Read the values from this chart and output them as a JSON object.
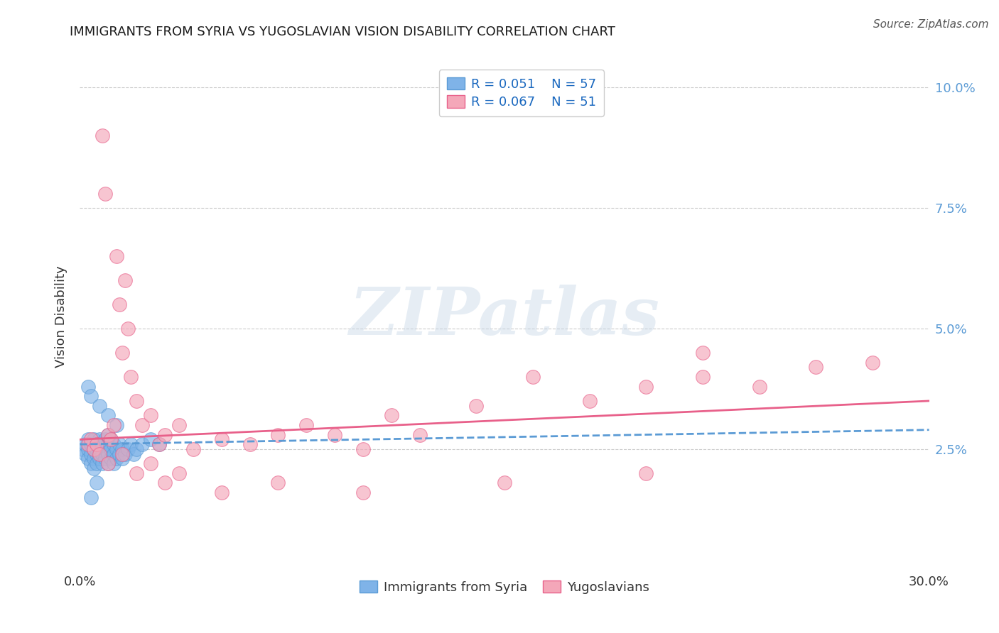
{
  "title": "IMMIGRANTS FROM SYRIA VS YUGOSLAVIAN VISION DISABILITY CORRELATION CHART",
  "source": "Source: ZipAtlas.com",
  "ylabel": "Vision Disability",
  "xlim": [
    0.0,
    0.3
  ],
  "ylim": [
    0.0,
    0.105
  ],
  "ytick_vals": [
    0.025,
    0.05,
    0.075,
    0.1
  ],
  "ytick_labels": [
    "2.5%",
    "5.0%",
    "7.5%",
    "10.0%"
  ],
  "xtick_vals": [
    0.0,
    0.3
  ],
  "xtick_labels": [
    "0.0%",
    "30.0%"
  ],
  "color_syria": "#7FB3E8",
  "color_yugoslav": "#F4A7B9",
  "trendline_syria_color": "#5B9BD5",
  "trendline_yugoslav_color": "#E8608A",
  "background_color": "#ffffff",
  "watermark_text": "ZIPatlas",
  "syria_x": [
    0.001,
    0.002,
    0.002,
    0.003,
    0.003,
    0.003,
    0.004,
    0.004,
    0.004,
    0.005,
    0.005,
    0.005,
    0.005,
    0.006,
    0.006,
    0.006,
    0.006,
    0.007,
    0.007,
    0.007,
    0.008,
    0.008,
    0.008,
    0.009,
    0.009,
    0.009,
    0.01,
    0.01,
    0.01,
    0.01,
    0.011,
    0.011,
    0.011,
    0.012,
    0.012,
    0.012,
    0.013,
    0.013,
    0.014,
    0.014,
    0.015,
    0.015,
    0.016,
    0.017,
    0.018,
    0.019,
    0.02,
    0.022,
    0.025,
    0.028,
    0.003,
    0.004,
    0.007,
    0.01,
    0.013,
    0.006,
    0.004
  ],
  "syria_y": [
    0.025,
    0.024,
    0.026,
    0.023,
    0.025,
    0.027,
    0.022,
    0.026,
    0.024,
    0.023,
    0.025,
    0.021,
    0.027,
    0.024,
    0.026,
    0.022,
    0.025,
    0.025,
    0.023,
    0.027,
    0.024,
    0.022,
    0.026,
    0.025,
    0.023,
    0.027,
    0.024,
    0.022,
    0.026,
    0.028,
    0.023,
    0.025,
    0.027,
    0.024,
    0.022,
    0.026,
    0.025,
    0.023,
    0.024,
    0.026,
    0.025,
    0.023,
    0.024,
    0.025,
    0.026,
    0.024,
    0.025,
    0.026,
    0.027,
    0.026,
    0.038,
    0.036,
    0.034,
    0.032,
    0.03,
    0.018,
    0.015
  ],
  "yugoslav_x": [
    0.003,
    0.004,
    0.005,
    0.006,
    0.007,
    0.008,
    0.009,
    0.01,
    0.011,
    0.012,
    0.013,
    0.014,
    0.015,
    0.016,
    0.017,
    0.018,
    0.02,
    0.022,
    0.025,
    0.028,
    0.03,
    0.035,
    0.04,
    0.05,
    0.06,
    0.07,
    0.08,
    0.09,
    0.1,
    0.11,
    0.12,
    0.14,
    0.16,
    0.18,
    0.2,
    0.22,
    0.24,
    0.26,
    0.28,
    0.01,
    0.015,
    0.02,
    0.025,
    0.03,
    0.035,
    0.05,
    0.07,
    0.1,
    0.15,
    0.2,
    0.22
  ],
  "yugoslav_y": [
    0.026,
    0.027,
    0.025,
    0.026,
    0.024,
    0.09,
    0.078,
    0.028,
    0.027,
    0.03,
    0.065,
    0.055,
    0.045,
    0.06,
    0.05,
    0.04,
    0.035,
    0.03,
    0.032,
    0.026,
    0.028,
    0.03,
    0.025,
    0.027,
    0.026,
    0.028,
    0.03,
    0.028,
    0.025,
    0.032,
    0.028,
    0.034,
    0.04,
    0.035,
    0.038,
    0.04,
    0.038,
    0.042,
    0.043,
    0.022,
    0.024,
    0.02,
    0.022,
    0.018,
    0.02,
    0.016,
    0.018,
    0.016,
    0.018,
    0.02,
    0.045
  ]
}
